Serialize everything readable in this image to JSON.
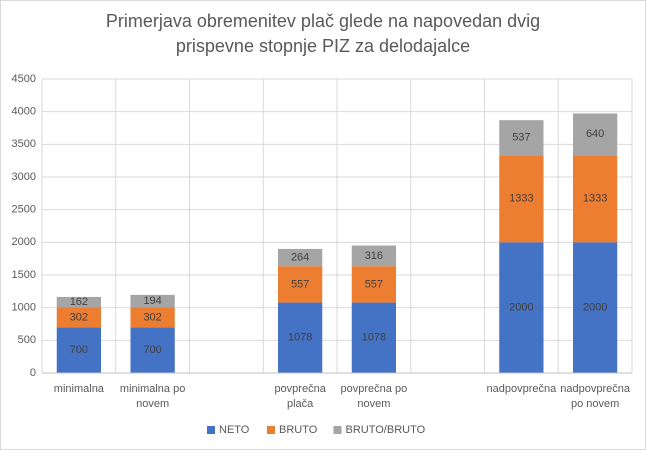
{
  "chart_data": {
    "type": "stacked-bar",
    "title": [
      "Primerjava obremenitev plač glede na napovedan dvig",
      "prispevne stopnje PIZ za delodajalce"
    ],
    "categories": [
      "minimalna",
      "minimalna po novem",
      null,
      "povprečna plača",
      "povprečna po novem",
      null,
      "nadpovprečna",
      "nadpovprečna po novem"
    ],
    "series": [
      {
        "name": "NETO",
        "color": "#4472c4",
        "values": [
          700,
          700,
          null,
          1078,
          1078,
          null,
          2000,
          2000
        ]
      },
      {
        "name": "BRUTO",
        "color": "#ed7d31",
        "values": [
          302,
          302,
          null,
          557,
          557,
          null,
          1333,
          1333
        ]
      },
      {
        "name": "BRUTO/BRUTO",
        "color": "#a5a5a5",
        "values": [
          162,
          194,
          null,
          264,
          316,
          null,
          537,
          640
        ]
      }
    ],
    "ylim": [
      0,
      4500
    ],
    "yticks": [
      0,
      500,
      1000,
      1500,
      2000,
      2500,
      3000,
      3500,
      4000,
      4500
    ],
    "grid": true,
    "legend": "bottom"
  }
}
